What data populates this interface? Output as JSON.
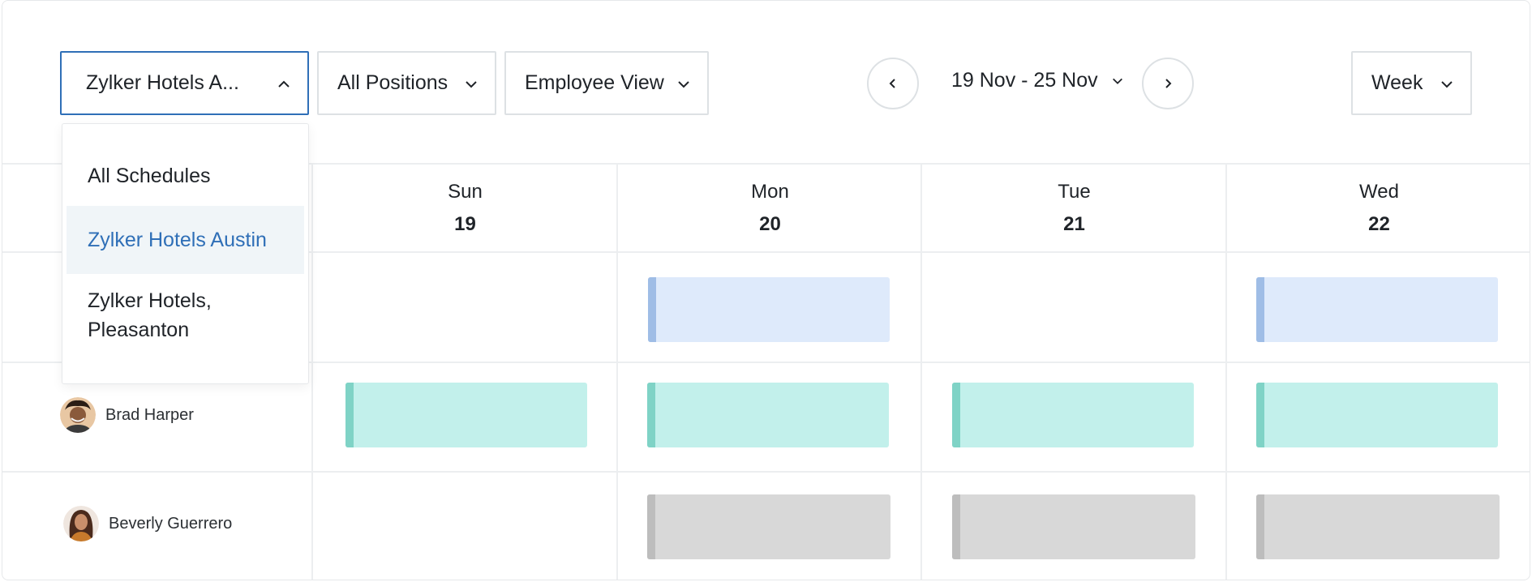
{
  "toolbar": {
    "schedule_select": {
      "label": "Zylker Hotels A...",
      "icon": "chevron-up-icon"
    },
    "positions_select": {
      "label": "All Positions",
      "icon": "chevron-down-icon"
    },
    "view_select": {
      "label": "Employee View",
      "icon": "chevron-down-icon"
    },
    "date_range": {
      "label": "19 Nov - 25 Nov",
      "icon": "chevron-down-icon"
    },
    "prev_button": {
      "icon": "chevron-left-icon"
    },
    "next_button": {
      "icon": "chevron-right-icon"
    },
    "period_select": {
      "label": "Week",
      "icon": "chevron-down-icon"
    }
  },
  "schedule_dropdown": {
    "items": [
      {
        "label": "All Schedules",
        "selected": false
      },
      {
        "label": "Zylker Hotels Austin",
        "selected": true
      },
      {
        "label": "Zylker Hotels, Pleasanton",
        "selected": false
      }
    ]
  },
  "days": [
    {
      "name": "Sun",
      "date": "19"
    },
    {
      "name": "Mon",
      "date": "20"
    },
    {
      "name": "Tue",
      "date": "21"
    },
    {
      "name": "Wed",
      "date": "22"
    }
  ],
  "employees": [
    {
      "name": "",
      "shifts": [
        "none",
        "blue",
        "none",
        "blue"
      ]
    },
    {
      "name": "Brad Harper",
      "shifts": [
        "teal",
        "teal",
        "teal",
        "teal"
      ]
    },
    {
      "name": "Beverly Guerrero",
      "shifts": [
        "none",
        "gray",
        "gray",
        "gray"
      ]
    }
  ],
  "colors": {
    "accent": "#2f6fb7",
    "shift_blue_fill": "#deeafb",
    "shift_blue_bar": "#9fbde6",
    "shift_teal_fill": "#c2f0eb",
    "shift_teal_bar": "#7fd3c6",
    "shift_gray_fill": "#d8d8d8",
    "shift_gray_bar": "#bdbdbd",
    "dropdown_selected_bg": "#f0f5f8"
  }
}
